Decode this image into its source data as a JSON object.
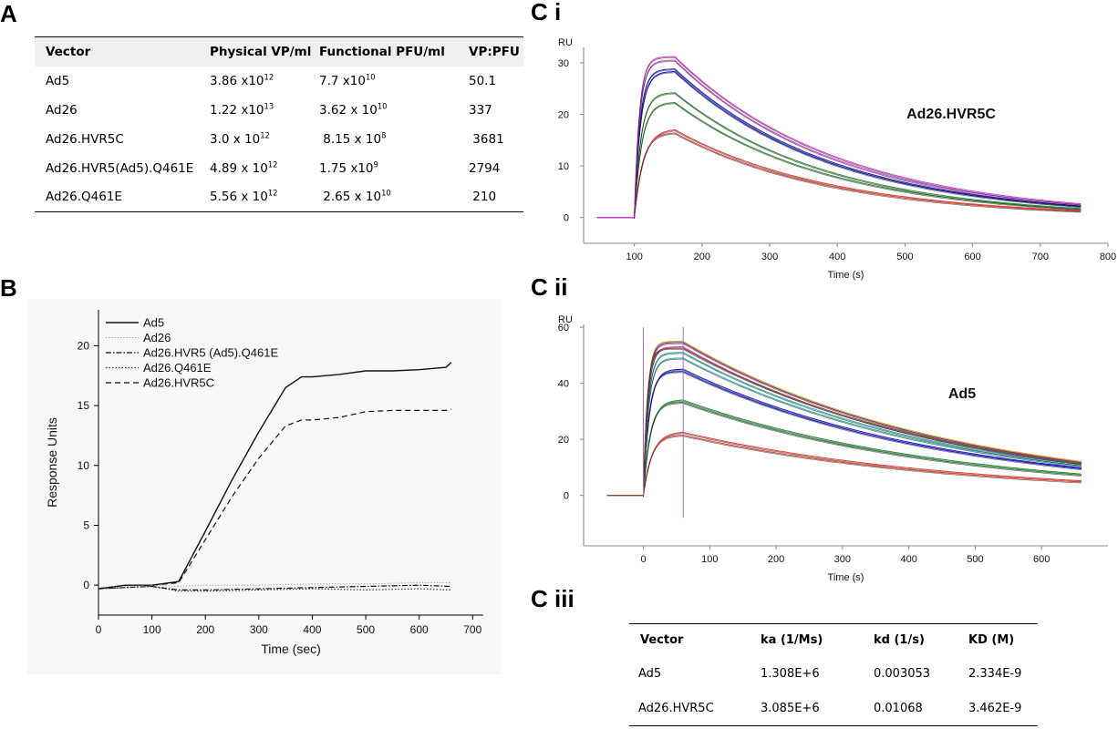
{
  "panels": {
    "a": "A",
    "b": "B",
    "ci": "C i",
    "cii": "C ii",
    "ciii": "C iii"
  },
  "table_a": {
    "headers": [
      "Vector",
      "Physical VP/ml",
      "Functional PFU/ml",
      "VP:PFU"
    ],
    "rows": [
      {
        "vector": "Ad5",
        "phys_base": "3.86 x10",
        "phys_exp": "12",
        "func_base": "7.7 x10",
        "func_exp": "10",
        "ratio": "50.1"
      },
      {
        "vector": "Ad26",
        "phys_base": "1.22 x10",
        "phys_exp": "13",
        "func_base": "3.62 x 10",
        "func_exp": "10",
        "ratio": "337"
      },
      {
        "vector": "Ad26.HVR5C",
        "phys_base": "3.0 x 10",
        "phys_exp": "12",
        "func_base": "8.15 x 10",
        "func_exp": "8",
        "ratio": "3681"
      },
      {
        "vector": "Ad26.HVR5(Ad5).Q461E",
        "phys_base": "4.89 x 10",
        "phys_exp": "12",
        "func_base": "1.75 x10",
        "func_exp": "9",
        "ratio": "2794"
      },
      {
        "vector": "Ad26.Q461E",
        "phys_base": "5.56 x 10",
        "phys_exp": "12",
        "func_base": "2.65 x 10",
        "func_exp": "10",
        "ratio": "210"
      }
    ]
  },
  "table_ciii": {
    "headers": [
      "Vector",
      "ka (1/Ms)",
      "kd (1/s)",
      "KD (M)"
    ],
    "rows": [
      {
        "vector": "Ad5",
        "ka": "1.308E+6",
        "kd": "0.003053",
        "KD": "2.334E-9"
      },
      {
        "vector": "Ad26.HVR5C",
        "ka": "3.085E+6",
        "kd": "0.01068",
        "KD": "3.462E-9"
      }
    ]
  },
  "chart_data": [
    {
      "id": "B",
      "type": "line",
      "xlabel": "Time (sec)",
      "ylabel": "Response Units",
      "xlim": [
        0,
        720
      ],
      "ylim": [
        -2.5,
        23
      ],
      "xticks": [
        0,
        100,
        200,
        300,
        400,
        500,
        600,
        700
      ],
      "yticks": [
        0,
        5,
        10,
        15,
        20
      ],
      "legend_position": "top-left",
      "series": [
        {
          "name": "Ad5",
          "style": "solid",
          "x": [
            0,
            50,
            100,
            150,
            200,
            250,
            300,
            350,
            380,
            400,
            450,
            500,
            550,
            600,
            650,
            660
          ],
          "y": [
            -0.3,
            0,
            0,
            0.3,
            4.5,
            8.8,
            12.8,
            16.5,
            17.4,
            17.4,
            17.6,
            17.9,
            17.9,
            18,
            18.2,
            18.6
          ]
        },
        {
          "name": "Ad26",
          "style": "dotted-light",
          "x": [
            0,
            100,
            150,
            200,
            300,
            400,
            500,
            600,
            660
          ],
          "y": [
            -0.2,
            0,
            -0.1,
            0,
            0,
            0.1,
            0.1,
            0.2,
            0.2
          ]
        },
        {
          "name": "Ad26.HVR5 (Ad5).Q461E",
          "style": "dashdot",
          "x": [
            0,
            100,
            150,
            200,
            300,
            400,
            500,
            600,
            660
          ],
          "y": [
            -0.3,
            -0.1,
            -0.4,
            -0.4,
            -0.3,
            -0.2,
            -0.1,
            0,
            -0.1
          ]
        },
        {
          "name": "Ad26.Q461E",
          "style": "dotted",
          "x": [
            0,
            100,
            150,
            200,
            300,
            400,
            500,
            600,
            660
          ],
          "y": [
            -0.3,
            -0.1,
            -0.5,
            -0.5,
            -0.4,
            -0.3,
            -0.4,
            -0.3,
            -0.4
          ]
        },
        {
          "name": "Ad26.HVR5C",
          "style": "dashed",
          "x": [
            0,
            50,
            100,
            150,
            200,
            250,
            300,
            350,
            380,
            400,
            450,
            500,
            550,
            600,
            650,
            660
          ],
          "y": [
            -0.3,
            0,
            0,
            0.2,
            3.8,
            7.4,
            10.6,
            13.3,
            13.8,
            13.8,
            14,
            14.5,
            14.6,
            14.6,
            14.6,
            14.7
          ]
        }
      ]
    },
    {
      "id": "Ci",
      "type": "line",
      "title": "Ad26.HVR5C",
      "xlabel": "Time (s)",
      "ylabel": "RU",
      "xlim": [
        25,
        800
      ],
      "ylim": [
        -5,
        33
      ],
      "xticks": [
        100,
        200,
        300,
        400,
        500,
        600,
        700,
        800
      ],
      "yticks": [
        0,
        10,
        20,
        30
      ],
      "association_start": 100,
      "dissociation_start": 160,
      "end": 765,
      "baseline_start": 45,
      "series": [
        {
          "color": "#e0453a",
          "peak": 17,
          "end": 1.3
        },
        {
          "color": "#e0453a",
          "peak": 16.4,
          "end": 1.2
        },
        {
          "color": "#2e8b3a",
          "peak": 22.3,
          "end": 1.6
        },
        {
          "color": "#2e8b3a",
          "peak": 24.2,
          "end": 1.7
        },
        {
          "color": "#2020c8",
          "peak": 28.3,
          "end": 2.1
        },
        {
          "color": "#2020c8",
          "peak": 28.8,
          "end": 2.2
        },
        {
          "color": "#d040d0",
          "peak": 30.5,
          "end": 2.4
        },
        {
          "color": "#d040d0",
          "peak": 31.2,
          "end": 2.6
        }
      ]
    },
    {
      "id": "Cii",
      "type": "line",
      "title": "Ad5",
      "xlabel": "Time (s)",
      "ylabel": "RU",
      "xlim": [
        -90,
        700
      ],
      "ylim": [
        -18,
        61
      ],
      "xticks": [
        0,
        100,
        200,
        300,
        400,
        500,
        600
      ],
      "yticks": [
        0,
        20,
        40,
        60
      ],
      "association_start": 0,
      "dissociation_start": 60,
      "end": 660,
      "baseline_start": -55,
      "series": [
        {
          "color": "#e0453a",
          "peak": 22.5,
          "end": 5.2
        },
        {
          "color": "#e0453a",
          "peak": 21.5,
          "end": 4.8
        },
        {
          "color": "#2e8b3a",
          "peak": 34,
          "end": 7.6
        },
        {
          "color": "#2e8b3a",
          "peak": 33.2,
          "end": 7.2
        },
        {
          "color": "#2020c8",
          "peak": 45,
          "end": 9.8
        },
        {
          "color": "#2020c8",
          "peak": 44.2,
          "end": 9.5
        },
        {
          "color": "#2aaaa8",
          "peak": 49,
          "end": 10.5
        },
        {
          "color": "#2aaaa8",
          "peak": 51,
          "end": 10.9
        },
        {
          "color": "#d040d0",
          "peak": 53,
          "end": 11.4
        },
        {
          "color": "#d040d0",
          "peak": 54.5,
          "end": 11.9
        },
        {
          "color": "#c8b030",
          "peak": 55,
          "end": 12.1
        },
        {
          "color": "#8b4a2a",
          "peak": 52.5,
          "end": 11.6
        }
      ]
    }
  ]
}
